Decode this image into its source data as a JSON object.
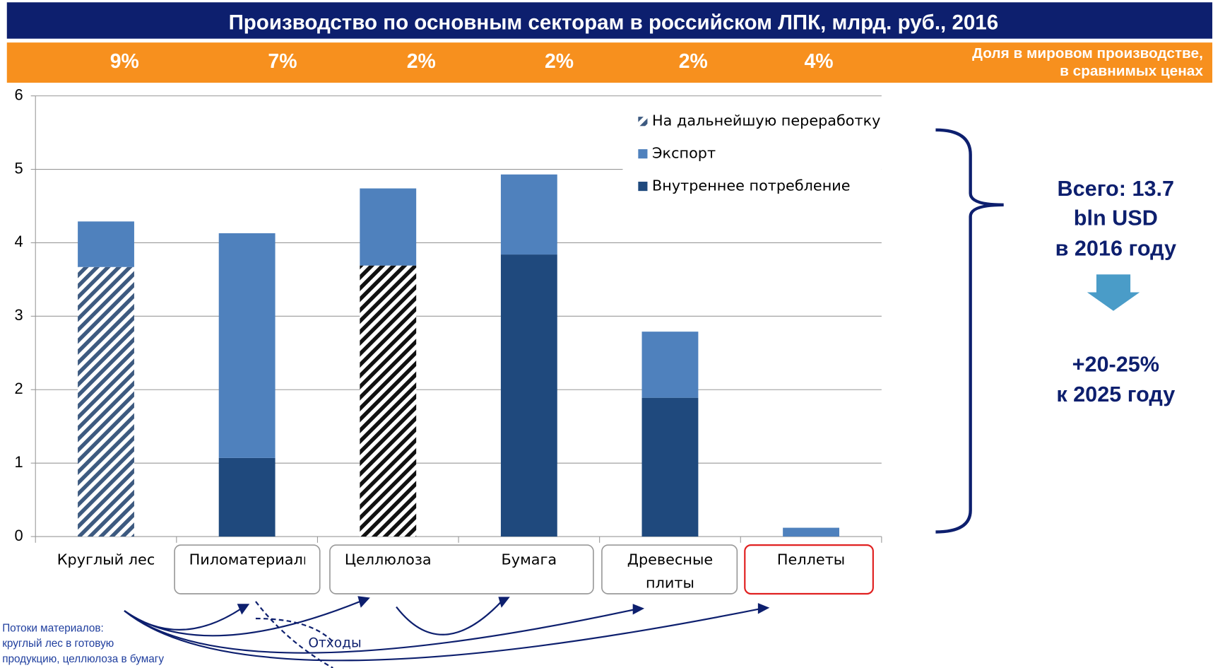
{
  "chart_data": {
    "type": "bar",
    "stacked": true,
    "title": "Производство по основным секторам в российском ЛПК, млрд. руб., 2016",
    "shares": {
      "label": [
        "Доля в мировом производстве,",
        "в сравнимых ценах"
      ],
      "values": [
        9,
        7,
        2,
        2,
        2,
        4
      ],
      "value_labels": [
        "9%",
        "7%",
        "2%",
        "2%",
        "2%",
        "4%"
      ]
    },
    "categories": [
      "Круглый лес",
      "Пиломатериалы",
      "Целлюлоза",
      "Бумага",
      "Древесные плиты",
      "Пеллеты"
    ],
    "series": [
      {
        "name": "Внутреннее потребление",
        "color": "#1f497d",
        "values": [
          null,
          1.07,
          null,
          3.84,
          1.89,
          null
        ]
      },
      {
        "name": "На дальнейшую переработку",
        "color": "#1f497d",
        "hatched": true,
        "colors": [
          "#3d5a80",
          "#3d5a80",
          "#111111",
          "#111111",
          "#3d5a80",
          "#3d5a80"
        ],
        "values": [
          3.67,
          null,
          3.69,
          null,
          null,
          null
        ]
      },
      {
        "name": "Экспорт",
        "color": "#4f81bd",
        "values": [
          0.62,
          3.06,
          1.05,
          1.09,
          0.9,
          0.12
        ]
      }
    ],
    "legend_order": [
      1,
      2,
      0
    ],
    "ylim": [
      0,
      6
    ],
    "yticks": [
      0,
      1,
      2,
      3,
      4,
      5,
      6
    ],
    "grid": true,
    "annotations": {
      "total": [
        "Всего: 13.7",
        "bln USD",
        "в 2016 году"
      ],
      "forecast": [
        "+20-25%",
        "к 2025 году"
      ],
      "flows_note": [
        "Потоки материалов:",
        "круглый лес в готовую",
        "продукцию, целлюлоза в бумагу"
      ],
      "waste_label": "Отходы"
    }
  }
}
